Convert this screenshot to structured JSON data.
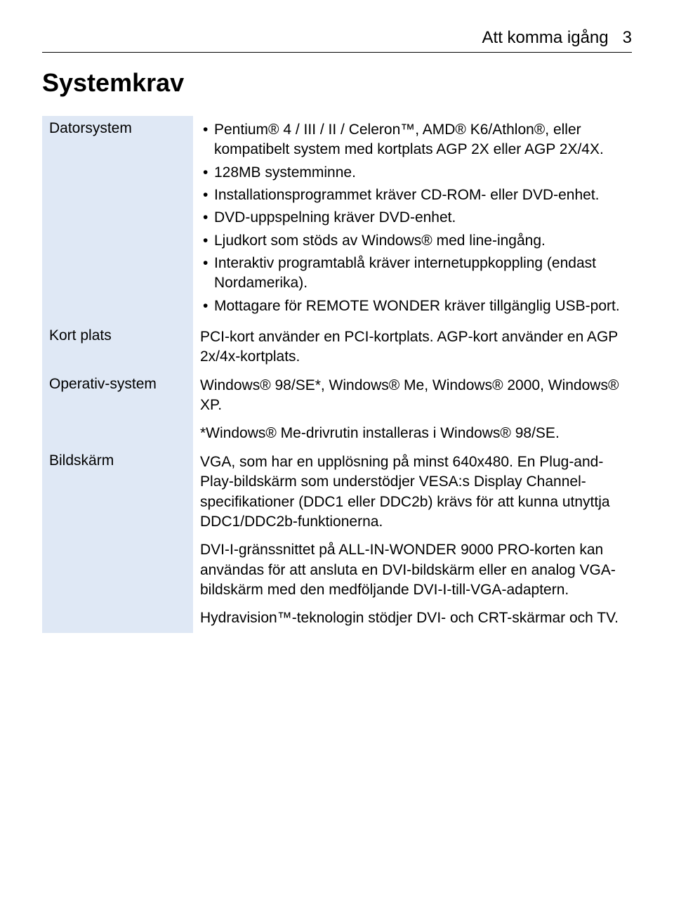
{
  "header": {
    "title": "Att komma igång",
    "page_number": "3"
  },
  "main_title": "Systemkrav",
  "rows": {
    "datorsystem": {
      "label": "Datorsystem",
      "items": [
        "Pentium® 4 / III / II / Celeron™, AMD® K6/Athlon®, eller kompatibelt system med kortplats AGP 2X eller AGP 2X/4X.",
        "128MB systemminne.",
        "Installationsprogrammet kräver CD-ROM- eller DVD-enhet.",
        "DVD-uppspelning kräver DVD-enhet.",
        "Ljudkort som stöds av Windows® med line-ingång.",
        "Interaktiv programtablå kräver internetuppkoppling (endast Nordamerika).",
        "Mottagare för REMOTE WONDER kräver tillgänglig USB-port."
      ]
    },
    "kortplats": {
      "label": "Kort plats",
      "text": "PCI-kort använder en PCI-kortplats. AGP-kort använder en AGP 2x/4x-kortplats."
    },
    "operativ": {
      "label": "Operativ-system",
      "p1": "Windows® 98/SE*, Windows® Me, Windows® 2000, Windows® XP.",
      "p2": "*Windows® Me-drivrutin installeras i Windows® 98/SE."
    },
    "bildskarm": {
      "label": "Bildskärm",
      "p1": "VGA, som har en upplösning på minst 640x480. En Plug-and-Play-bildskärm som understödjer VESA:s Display Channel-specifikationer (DDC1 eller DDC2b) krävs för att kunna utnyttja DDC1/DDC2b-funktionerna.",
      "p2": "DVI-I-gränssnittet på ALL-IN-WONDER 9000 PRO-korten kan användas för att ansluta en DVI-bildskärm eller en analog VGA-bildskärm med den medföljande DVI-I-till-VGA-adaptern.",
      "p3": "Hydravision™-teknologin stödjer DVI- och CRT-skärmar och TV."
    }
  }
}
